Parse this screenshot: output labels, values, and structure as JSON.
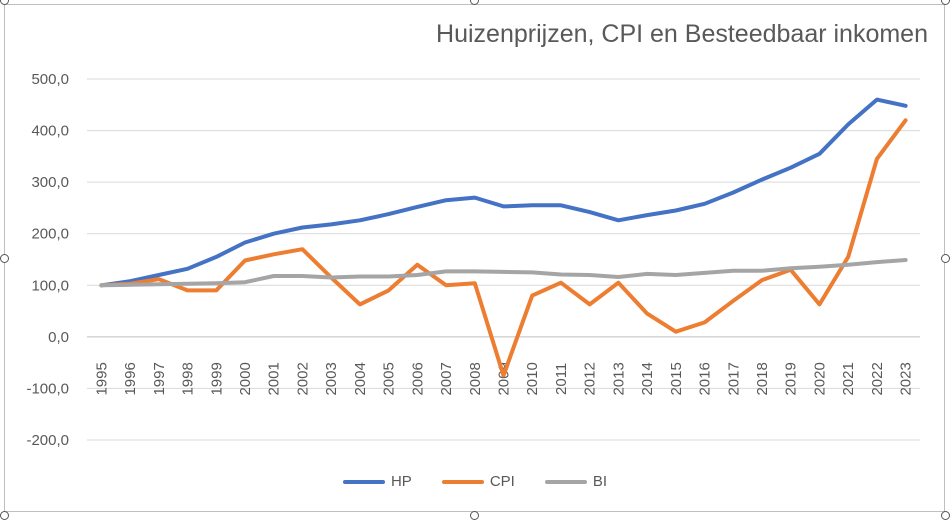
{
  "chart_data": {
    "type": "line",
    "title": "Huizenprijzen, CPI en Besteedbaar inkomen",
    "xlabel": "",
    "ylabel": "",
    "ylim": [
      -200,
      500
    ],
    "yticks": [
      "500,0",
      "400,0",
      "300,0",
      "200,0",
      "100,0",
      "0,0",
      "-100,0",
      "-200,0"
    ],
    "ytick_values": [
      500,
      400,
      300,
      200,
      100,
      0,
      -100,
      -200
    ],
    "grid": true,
    "legend": "bottom",
    "categories": [
      "1995",
      "1996",
      "1997",
      "1998",
      "1999",
      "2000",
      "2001",
      "2002",
      "2003",
      "2004",
      "2005",
      "2006",
      "2007",
      "2008",
      "2009",
      "2010",
      "2011",
      "2012",
      "2013",
      "2014",
      "2015",
      "2016",
      "2017",
      "2018",
      "2019",
      "2020",
      "2021",
      "2022",
      "2023"
    ],
    "series": [
      {
        "name": "HP",
        "color": "#4472C4",
        "values": [
          100,
          108,
          120,
          132,
          155,
          183,
          200,
          212,
          218,
          226,
          238,
          252,
          265,
          270,
          253,
          255,
          255,
          242,
          226,
          236,
          245,
          258,
          280,
          305,
          328,
          355,
          412,
          460,
          448
        ]
      },
      {
        "name": "CPI",
        "color": "#ED7D31",
        "values": [
          100,
          103,
          112,
          90,
          90,
          148,
          160,
          170,
          115,
          63,
          90,
          140,
          100,
          104,
          -75,
          80,
          105,
          63,
          105,
          45,
          10,
          28,
          70,
          110,
          130,
          63,
          155,
          345,
          420
        ]
      },
      {
        "name": "BI",
        "color": "#A5A5A5",
        "values": [
          100,
          101,
          102,
          103,
          104,
          106,
          118,
          118,
          115,
          117,
          117,
          120,
          127,
          127,
          126,
          125,
          121,
          120,
          116,
          122,
          120,
          124,
          128,
          128,
          133,
          136,
          140,
          145,
          149
        ]
      }
    ]
  }
}
